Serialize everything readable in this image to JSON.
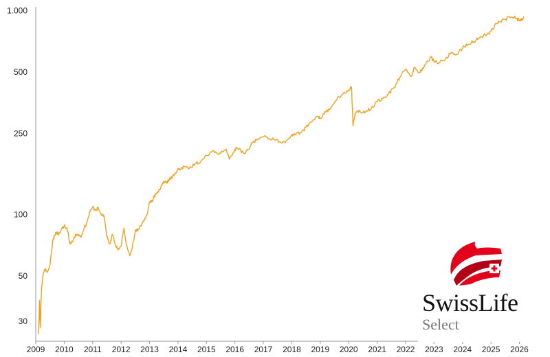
{
  "chart_data": {
    "type": "line",
    "title": "",
    "xlabel": "",
    "ylabel": "",
    "yscale": "log",
    "ylim": [
      24,
      1010
    ],
    "xlim": [
      2009.0,
      2026.35
    ],
    "yticks": [
      30,
      50,
      100,
      250,
      500,
      1000
    ],
    "ytick_labels": [
      "30",
      "50",
      "100",
      "250",
      "500",
      "1.000"
    ],
    "xticks": [
      2009,
      2010,
      2011,
      2012,
      2013,
      2014,
      2015,
      2016,
      2017,
      2018,
      2019,
      2020,
      2021,
      2022,
      2023,
      2024,
      2025,
      2026
    ],
    "xtick_labels": [
      "2009",
      "2010",
      "2011",
      "2012",
      "2013",
      "2014",
      "2015",
      "2016",
      "2017",
      "2018",
      "2019",
      "2020",
      "2021",
      "2022",
      "2023",
      "2024",
      "2025",
      "2026"
    ],
    "grid": false,
    "legend": "none",
    "series": [
      {
        "color": "#F0A020",
        "x": [
          2009.1,
          2009.13,
          2009.16,
          2009.2,
          2009.25,
          2009.32,
          2009.4,
          2009.5,
          2009.6,
          2009.7,
          2009.8,
          2009.9,
          2010.0,
          2010.1,
          2010.2,
          2010.3,
          2010.4,
          2010.5,
          2010.6,
          2010.7,
          2010.8,
          2010.9,
          2011.0,
          2011.1,
          2011.2,
          2011.3,
          2011.4,
          2011.5,
          2011.6,
          2011.7,
          2011.8,
          2011.9,
          2012.0,
          2012.1,
          2012.2,
          2012.3,
          2012.4,
          2012.5,
          2012.6,
          2012.8,
          2012.9,
          2013.0,
          2013.1,
          2013.2,
          2013.3,
          2013.4,
          2013.5,
          2013.6,
          2013.7,
          2013.8,
          2014.0,
          2014.1,
          2014.2,
          2014.4,
          2014.6,
          2014.8,
          2015.0,
          2015.2,
          2015.35,
          2015.5,
          2015.7,
          2015.8,
          2016.0,
          2016.1,
          2016.3,
          2016.5,
          2016.6,
          2016.8,
          2017.0,
          2017.2,
          2017.4,
          2017.6,
          2017.8,
          2018.0,
          2018.1,
          2018.3,
          2018.5,
          2018.7,
          2018.9,
          2019.0,
          2019.2,
          2019.4,
          2019.6,
          2019.8,
          2020.0,
          2020.1,
          2020.15,
          2020.2,
          2020.25,
          2020.4,
          2020.6,
          2020.8,
          2021.0,
          2021.2,
          2021.4,
          2021.6,
          2021.8,
          2022.0,
          2022.2,
          2022.3,
          2022.5,
          2022.7,
          2022.9,
          2023.0,
          2023.2,
          2023.4,
          2023.6,
          2023.8,
          2024.0,
          2024.2,
          2024.4,
          2024.6,
          2024.8,
          2025.0,
          2025.2,
          2025.3,
          2025.5,
          2025.7,
          2025.9,
          2026.0,
          2026.1,
          2026.15
        ],
        "y": [
          26,
          38,
          28,
          43,
          50,
          54,
          52,
          57,
          75,
          82,
          80,
          85,
          88,
          86,
          72,
          74,
          80,
          79,
          78,
          86,
          92,
          103,
          109,
          105,
          108,
          101,
          99,
          78,
          72,
          80,
          70,
          68,
          70,
          86,
          70,
          63,
          70,
          84,
          85,
          94,
          99,
          115,
          118,
          125,
          130,
          137,
          146,
          143,
          150,
          152,
          168,
          167,
          173,
          169,
          177,
          182,
          195,
          204,
          201,
          200,
          209,
          187,
          209,
          211,
          200,
          209,
          226,
          233,
          240,
          236,
          232,
          227,
          230,
          246,
          246,
          251,
          268,
          284,
          304,
          297,
          318,
          340,
          372,
          390,
          409,
          421,
          272,
          299,
          316,
          320,
          321,
          333,
          357,
          371,
          392,
          419,
          472,
          516,
          476,
          527,
          495,
          545,
          590,
          560,
          556,
          580,
          623,
          610,
          655,
          684,
          704,
          735,
          760,
          790,
          862,
          880,
          905,
          930,
          915,
          890,
          905,
          920
        ]
      }
    ],
    "annotations": []
  },
  "logo": {
    "icon": "swiss-life-logo-icon",
    "wordmark": "SwissLife",
    "subline": "Select",
    "colors": {
      "red": "#E2001A",
      "dark_red": "#B40015",
      "text": "#111111",
      "sub": "#777777"
    }
  }
}
